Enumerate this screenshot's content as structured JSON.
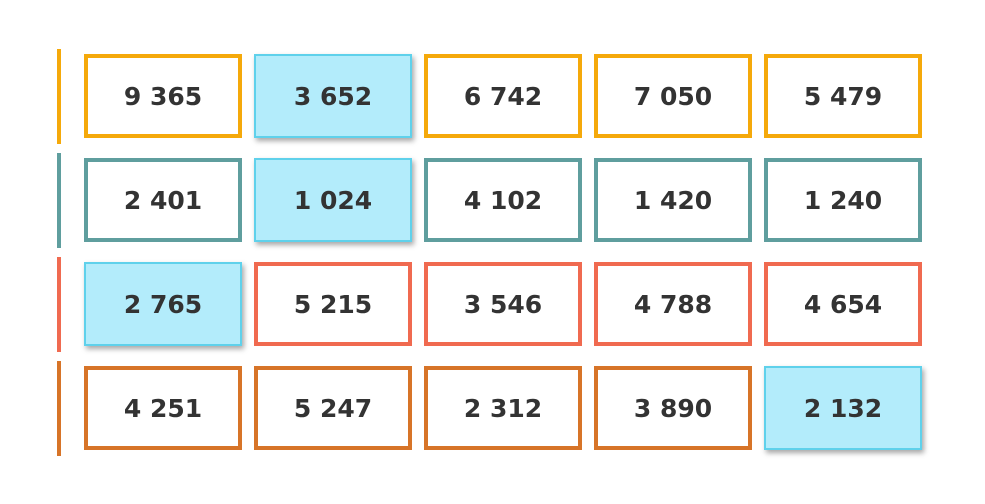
{
  "colors": {
    "selected_fill": "#b3ecfb",
    "selected_border": "#5fd1eb",
    "text": "#333333"
  },
  "rows": [
    {
      "color": "#f5a90a",
      "cells": [
        {
          "value": "9 365",
          "selected": false
        },
        {
          "value": "3 652",
          "selected": true
        },
        {
          "value": "6 742",
          "selected": false
        },
        {
          "value": "7 050",
          "selected": false
        },
        {
          "value": "5 479",
          "selected": false
        }
      ]
    },
    {
      "color": "#5f9e9e",
      "cells": [
        {
          "value": "2 401",
          "selected": false
        },
        {
          "value": "1 024",
          "selected": true
        },
        {
          "value": "4 102",
          "selected": false
        },
        {
          "value": "1 420",
          "selected": false
        },
        {
          "value": "1 240",
          "selected": false
        }
      ]
    },
    {
      "color": "#f06a50",
      "cells": [
        {
          "value": "2 765",
          "selected": true
        },
        {
          "value": "5 215",
          "selected": false
        },
        {
          "value": "3 546",
          "selected": false
        },
        {
          "value": "4 788",
          "selected": false
        },
        {
          "value": "4 654",
          "selected": false
        }
      ]
    },
    {
      "color": "#d77428",
      "cells": [
        {
          "value": "4 251",
          "selected": false
        },
        {
          "value": "5 247",
          "selected": false
        },
        {
          "value": "2 312",
          "selected": false
        },
        {
          "value": "3 890",
          "selected": false
        },
        {
          "value": "2 132",
          "selected": true
        }
      ]
    }
  ]
}
